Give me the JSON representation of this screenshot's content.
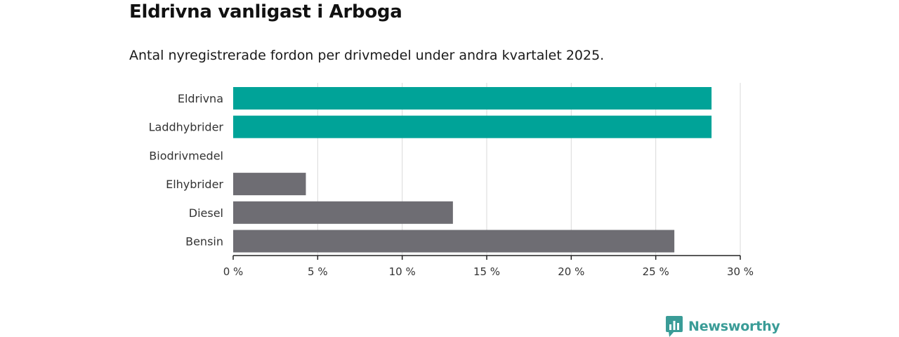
{
  "title": "Eldrivna vanligast i Arboga",
  "subtitle": "Antal nyregistrerade fordon per drivmedel under andra kvartalet 2025.",
  "brand": {
    "name": "Newsworthy",
    "color": "#3a9c97",
    "icon": "bar-chart-speech-bubble-icon"
  },
  "colors": {
    "highlight": "#00a398",
    "default": "#6e6d73",
    "grid": "#d9d9d9",
    "axis": "#222222"
  },
  "chart_data": {
    "type": "bar",
    "orientation": "horizontal",
    "categories": [
      "Eldrivna",
      "Laddhybrider",
      "Biodrivmedel",
      "Elhybrider",
      "Diesel",
      "Bensin"
    ],
    "values": [
      28.3,
      28.3,
      0,
      4.3,
      13.0,
      26.1
    ],
    "highlighted": [
      true,
      true,
      false,
      false,
      false,
      false
    ],
    "xlim": [
      0,
      30
    ],
    "xticks": [
      0,
      5,
      10,
      15,
      20,
      25,
      30
    ],
    "xtick_labels": [
      "0 %",
      "5 %",
      "10 %",
      "15 %",
      "20 %",
      "25 %",
      "30 %"
    ],
    "grid": true,
    "legend": "none"
  }
}
